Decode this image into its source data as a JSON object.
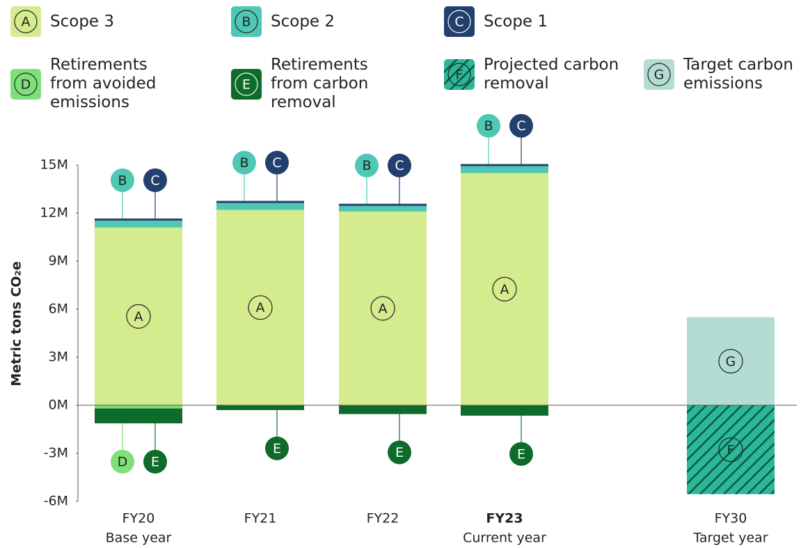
{
  "chart_data": {
    "type": "bar",
    "stacked": true,
    "categories": [
      "FY20",
      "FY21",
      "FY22",
      "FY23",
      "FY30"
    ],
    "category_sublabels": [
      "Base year",
      null,
      null,
      "Current year",
      "Target year"
    ],
    "highlight_category": 3,
    "y_label": "Metric tons CO₂e",
    "ylim": [
      -6,
      15
    ],
    "yticks": [
      {
        "value": -6,
        "label": "-6M"
      },
      {
        "value": -3,
        "label": "-3M"
      },
      {
        "value": 0,
        "label": "0M"
      },
      {
        "value": 3,
        "label": "3M"
      },
      {
        "value": 6,
        "label": "6M"
      },
      {
        "value": 9,
        "label": "9M"
      },
      {
        "value": 12,
        "label": "12M"
      },
      {
        "value": 15,
        "label": "15M"
      }
    ],
    "series": [
      {
        "name": "Scope 3",
        "letter": "A",
        "color": "#d4eb8e",
        "values": [
          11.1,
          12.2,
          12.1,
          14.5,
          null
        ]
      },
      {
        "name": "Scope 2",
        "letter": "B",
        "color": "#4ec8b4",
        "values": [
          0.43,
          0.43,
          0.35,
          0.43,
          null
        ]
      },
      {
        "name": "Scope 1",
        "letter": "C",
        "color": "#233f6e",
        "values": [
          0.13,
          0.13,
          0.13,
          0.13,
          null
        ]
      },
      {
        "name": "Retirements from avoided emissions",
        "letter": "D",
        "color": "#7fe07a",
        "values": [
          -0.2,
          null,
          null,
          null,
          null
        ]
      },
      {
        "name": "Retirements from carbon removal",
        "letter": "E",
        "color": "#0e6b2a",
        "values": [
          -0.93,
          -0.3,
          -0.55,
          -0.65,
          null
        ]
      },
      {
        "name": "Projected carbon removal",
        "letter": "F",
        "color": "#2bb89a",
        "hatch": true,
        "values": [
          null,
          null,
          null,
          null,
          -5.55
        ]
      },
      {
        "name": "Target carbon emissions",
        "letter": "G",
        "color": "#b3ddd3",
        "values": [
          null,
          null,
          null,
          null,
          5.5
        ]
      }
    ]
  }
}
